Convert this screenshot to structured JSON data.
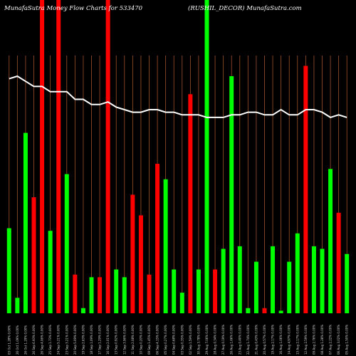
{
  "chart_data": {
    "type": "bar",
    "title_left": "MunafaSutra  Money Flow  Charts for 533470",
    "title_right": "(RUSHIL_DECOR) MunafaSutra.com",
    "background": "#000000",
    "colors": {
      "up": "#00ff00",
      "down": "#ff0000",
      "line": "#ffffff",
      "grid": "#a0522d"
    },
    "ylim": [
      0,
      100
    ],
    "categories": [
      "03 Oct 1.28% 0.00%",
      "26 Oct 1.09% 0.00%",
      "26 Oct 1.29% 0.00%",
      "26 Sep 6.93% 0.00%",
      "26 Sep 4.06% 0.00%",
      "25 Sep 1.73% 0.00%",
      "24 Sep 5.21% 0.00%",
      "23 Sep 3.21% 0.00%",
      "20 Sep 5.09% 0.00%",
      "19 Sep 2.63% 0.00%",
      "18 Sep 1.09% 0.00%",
      "17 Sep 1.29% 0.00%",
      "16 Sep 2.01% 0.00%",
      "13 Sep 0.92% 0.00%",
      "12 Sep 3.96% 0.00%",
      "11 Sep 2.08% 0.00%",
      "10 Sep 0.20% 0.00%",
      "09 Sep 1.45% 0.00%",
      "06 Sep 4.15% 0.00%",
      "05 Sep 0.27% 0.00%",
      "04 Sep 0.68% 0.00%",
      "03 Sep 0.35% 0.00%",
      "02 Sep 1.59% 0.00%",
      "30 Aug 3.78% 0.00%",
      "29 Aug 7.06% 0.00%",
      "28 Aug 0.34% 0.00%",
      "27 Aug 0.19% 0.00%",
      "26 Aug 1.66% 0.00%",
      "23 Aug 0.40% 0.00%",
      "22 Aug 1.74% 0.00%",
      "21 Aug 0.43% 0.00%",
      "20 Aug 0.57% 0.00%",
      "19 Aug 2.17% 0.00%",
      "16 Aug 1.06% 0.00%",
      "14 Aug 4.97% 0.00%",
      "13 Aug 2.17% 0.00%",
      "12 Aug 2.59% 0.00%",
      "09 Aug 2.76% 0.00%",
      "08 Aug 1.28% 0.00%",
      "07 Aug 2.22% 0.00%",
      "06 Aug 3.02% 0.00%",
      "05 Aug 1.50% 0.00%"
    ],
    "series": [
      {
        "values": [
          33,
          6,
          70,
          45,
          100,
          32,
          100,
          54,
          15,
          2,
          14,
          14,
          100,
          17,
          14,
          46,
          38,
          15,
          58,
          52,
          17,
          8,
          85,
          17,
          100,
          17,
          25,
          92,
          26,
          2,
          20,
          2,
          26,
          1,
          20,
          31,
          96,
          26,
          25,
          56,
          39,
          23
        ],
        "colors": [
          "green",
          "green",
          "green",
          "red",
          "red",
          "green",
          "red",
          "green",
          "red",
          "green",
          "green",
          "red",
          "red",
          "green",
          "green",
          "red",
          "red",
          "red",
          "red",
          "green",
          "green",
          "green",
          "red",
          "green",
          "green",
          "red",
          "green",
          "green",
          "green",
          "green",
          "green",
          "red",
          "green",
          "green",
          "green",
          "green",
          "red",
          "green",
          "green",
          "green",
          "red",
          "green"
        ]
      },
      {
        "values": [
          91,
          92,
          90,
          88,
          88,
          86,
          86,
          86,
          83,
          83,
          81,
          81,
          82,
          80,
          79,
          78,
          78,
          79,
          79,
          78,
          78,
          77,
          77,
          77,
          76,
          76,
          76,
          77,
          77,
          78,
          78,
          77,
          77,
          79,
          77,
          77,
          79,
          79,
          78,
          76,
          77,
          76
        ]
      }
    ]
  }
}
